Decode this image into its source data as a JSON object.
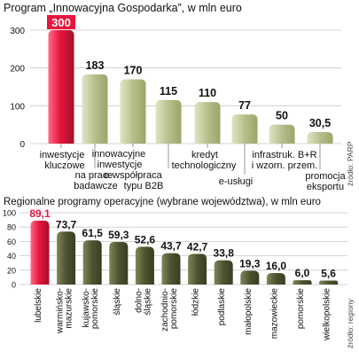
{
  "colors": {
    "bar": "#b7bf8c",
    "bar_dark": "#4d5230",
    "highlight": "#e8163f",
    "highlight_dark": "#9f0f2b",
    "grid": "#c9c9c9",
    "text": "#111111",
    "source": "#444444"
  },
  "chart_data": [
    {
      "type": "bar",
      "title": "Program „Innowacyjna Gospodarka”, w mln euro",
      "source": "źródło: PARP",
      "ylim": [
        0,
        300
      ],
      "yticks": [
        0,
        100,
        200,
        300
      ],
      "grid": true,
      "highlight_index": 0,
      "categories": [
        "inwestycje kluczowe",
        "na prace badawcze",
        "innowacyjne inwestycje",
        "e-współpraca typu B2B",
        "kredyt technologiczny",
        "e-usługi",
        "infrastruk. B+R i wzorn. przem.",
        "promocja eksportu"
      ],
      "values": [
        300,
        183,
        170,
        115,
        110,
        77,
        50,
        30.5
      ],
      "value_labels": [
        "300",
        "183",
        "170",
        "115",
        "110",
        "77",
        "50",
        "30,5"
      ]
    },
    {
      "type": "bar",
      "title": "Regionalne programy operacyjne (wybrane województwa), w mln euro",
      "source": "źródło: regiony",
      "ylim": [
        0,
        100
      ],
      "yticks": [
        0,
        20,
        40,
        60,
        80,
        100
      ],
      "grid": true,
      "highlight_index": 0,
      "categories": [
        "lubelskie",
        "warmińsko-mazurskie",
        "kujawsko-pomorskie",
        "śląskie",
        "dolno-śląskie",
        "zachodnio-pomorskie",
        "łódzkie",
        "podlaskie",
        "małopolskie",
        "mazowieckie",
        "pomorskie",
        "wielkopolskie"
      ],
      "values": [
        89.1,
        73.7,
        61.5,
        59.3,
        52.6,
        43.7,
        42.7,
        33.8,
        19.3,
        16.0,
        6.0,
        5.6
      ],
      "value_labels": [
        "89,1",
        "73,7",
        "61,5",
        "59,3",
        "52,6",
        "43,7",
        "42,7",
        "33,8",
        "19,3",
        "16,0",
        "6,0",
        "5,6"
      ]
    }
  ]
}
